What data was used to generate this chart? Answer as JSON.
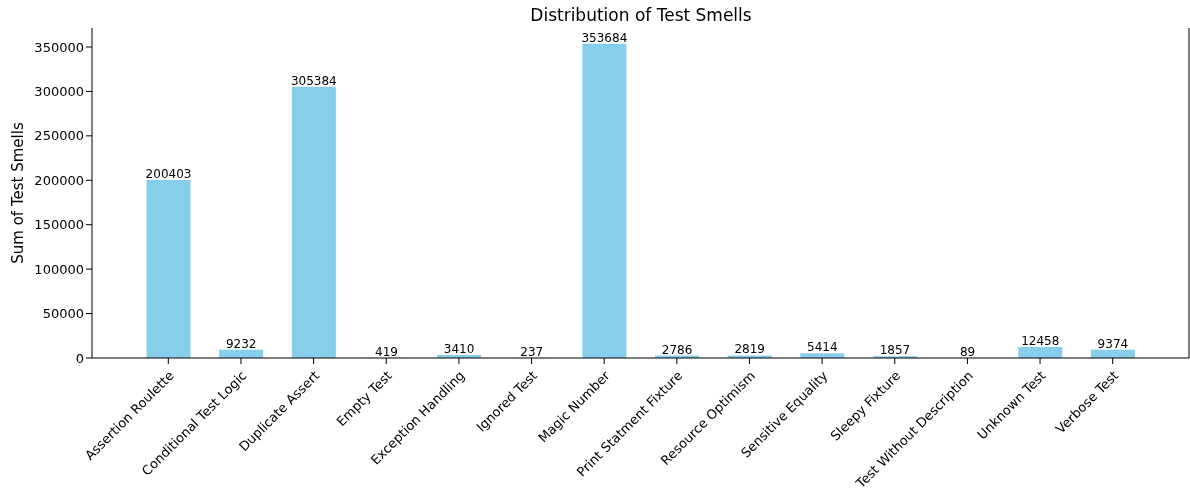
{
  "chart_data": {
    "type": "bar",
    "title": "Distribution of Test Smells",
    "ylabel": "Sum of Test Smells",
    "categories": [
      "Assertion Roulette",
      "Conditional Test Logic",
      "Duplicate Assert",
      "Empty Test",
      "Exception Handling",
      "Ignored Test",
      "Magic Number",
      "Print Statment Fixture",
      "Resource Optimism",
      "Sensitive Equality",
      "Sleepy Fixture",
      "Test Without Description",
      "Unknown Test",
      "Verbose Test"
    ],
    "values": [
      200403,
      9232,
      305384,
      419,
      3410,
      237,
      353684,
      2786,
      2819,
      5414,
      1857,
      89,
      12458,
      9374
    ],
    "color": "#87ceeb",
    "data_labels": true,
    "grid": false,
    "ylim": [
      0,
      371368
    ],
    "yticks": [
      0,
      50000,
      100000,
      150000,
      200000,
      250000,
      300000,
      350000
    ]
  }
}
